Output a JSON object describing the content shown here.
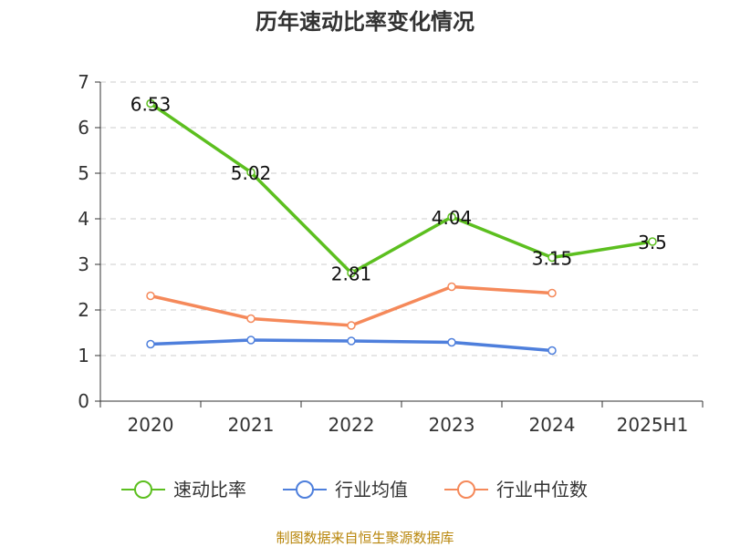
{
  "chart_data": {
    "type": "line",
    "title": "历年速动比率变化情况",
    "categories": [
      "2020",
      "2021",
      "2022",
      "2023",
      "2024",
      "2025H1"
    ],
    "ylim": [
      0,
      7
    ],
    "yticks": [
      0,
      1,
      2,
      3,
      4,
      5,
      6,
      7
    ],
    "grid": true,
    "legend_position": "bottom",
    "series": [
      {
        "name": "速动比率",
        "color": "#5cbf1f",
        "values": [
          6.53,
          5.02,
          2.81,
          4.04,
          3.15,
          3.5
        ],
        "labels": [
          "6.53",
          "5.02",
          "2.81",
          "4.04",
          "3.15",
          "3.5"
        ]
      },
      {
        "name": "行业均值",
        "color": "#4e7fdc",
        "values": [
          1.25,
          1.34,
          1.32,
          1.29,
          1.11,
          null
        ]
      },
      {
        "name": "行业中位数",
        "color": "#f5895a",
        "values": [
          2.31,
          1.81,
          1.66,
          2.51,
          2.37,
          null
        ]
      }
    ]
  },
  "source": "制图数据来自恒生聚源数据库"
}
